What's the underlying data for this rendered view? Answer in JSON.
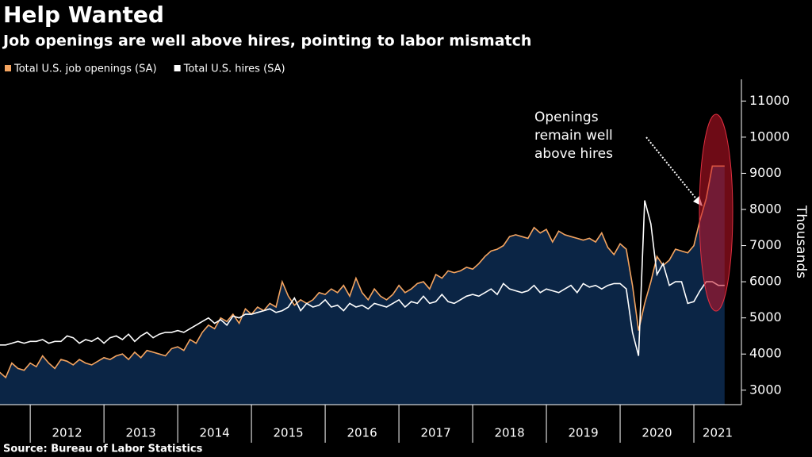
{
  "chart_data": {
    "type": "line",
    "title": "Help Wanted",
    "subtitle": "Job openings are well above hires, pointing to labor mismatch",
    "y_label": "Thousands",
    "source": "Source: Bureau of Labor Statistics",
    "annotation": [
      "Openings",
      "remain well",
      "above hires"
    ],
    "x": [
      2011.583,
      2011.667,
      2011.75,
      2011.833,
      2011.917,
      2012,
      2012.083,
      2012.167,
      2012.25,
      2012.333,
      2012.417,
      2012.5,
      2012.583,
      2012.667,
      2012.75,
      2012.833,
      2012.917,
      2013,
      2013.083,
      2013.167,
      2013.25,
      2013.333,
      2013.417,
      2013.5,
      2013.583,
      2013.667,
      2013.75,
      2013.833,
      2013.917,
      2014,
      2014.083,
      2014.167,
      2014.25,
      2014.333,
      2014.417,
      2014.5,
      2014.583,
      2014.667,
      2014.75,
      2014.833,
      2014.917,
      2015,
      2015.083,
      2015.167,
      2015.25,
      2015.333,
      2015.417,
      2015.5,
      2015.583,
      2015.667,
      2015.75,
      2015.833,
      2015.917,
      2016,
      2016.083,
      2016.167,
      2016.25,
      2016.333,
      2016.417,
      2016.5,
      2016.583,
      2016.667,
      2016.75,
      2016.833,
      2016.917,
      2017,
      2017.083,
      2017.167,
      2017.25,
      2017.333,
      2017.417,
      2017.5,
      2017.583,
      2017.667,
      2017.75,
      2017.833,
      2017.917,
      2018,
      2018.083,
      2018.167,
      2018.25,
      2018.333,
      2018.417,
      2018.5,
      2018.583,
      2018.667,
      2018.75,
      2018.833,
      2018.917,
      2019,
      2019.083,
      2019.167,
      2019.25,
      2019.333,
      2019.417,
      2019.5,
      2019.583,
      2019.667,
      2019.75,
      2019.833,
      2019.917,
      2020,
      2020.083,
      2020.167,
      2020.25,
      2020.333,
      2020.417,
      2020.5,
      2020.583,
      2020.667,
      2020.75,
      2020.833,
      2020.917,
      2021,
      2021.083,
      2021.167,
      2021.25,
      2021.333,
      2021.417
    ],
    "series": [
      {
        "name": "Total U.S. job openings (SA)",
        "color": "#f4a460",
        "area": "#0b2545",
        "values": [
          3500,
          3350,
          3750,
          3600,
          3550,
          3750,
          3650,
          3950,
          3750,
          3600,
          3850,
          3800,
          3700,
          3850,
          3750,
          3700,
          3800,
          3900,
          3850,
          3950,
          4000,
          3850,
          4050,
          3900,
          4100,
          4050,
          4000,
          3950,
          4150,
          4200,
          4100,
          4400,
          4300,
          4600,
          4800,
          4700,
          5000,
          4900,
          5100,
          4850,
          5250,
          5100,
          5300,
          5200,
          5400,
          5300,
          6000,
          5600,
          5350,
          5500,
          5400,
          5500,
          5700,
          5650,
          5800,
          5700,
          5900,
          5600,
          6100,
          5700,
          5500,
          5800,
          5600,
          5500,
          5650,
          5900,
          5700,
          5800,
          5950,
          6000,
          5800,
          6200,
          6100,
          6300,
          6250,
          6300,
          6400,
          6350,
          6500,
          6700,
          6850,
          6900,
          7000,
          7250,
          7300,
          7250,
          7200,
          7500,
          7350,
          7450,
          7100,
          7400,
          7300,
          7250,
          7200,
          7150,
          7200,
          7100,
          7350,
          6950,
          6750,
          7050,
          6900,
          5900,
          4650,
          5400,
          6000,
          6700,
          6450,
          6600,
          6900,
          6850,
          6800,
          7000,
          7700,
          8300,
          9200,
          9200,
          9200
        ]
      },
      {
        "name": "Total U.S. hires (SA)",
        "color": "#ffffff",
        "values": [
          4250,
          4250,
          4300,
          4350,
          4300,
          4350,
          4350,
          4400,
          4300,
          4350,
          4350,
          4500,
          4450,
          4300,
          4400,
          4350,
          4450,
          4300,
          4450,
          4500,
          4400,
          4550,
          4350,
          4500,
          4600,
          4450,
          4550,
          4600,
          4600,
          4650,
          4600,
          4700,
          4800,
          4900,
          5000,
          4850,
          4950,
          4800,
          5050,
          5000,
          5100,
          5100,
          5150,
          5200,
          5250,
          5150,
          5200,
          5300,
          5550,
          5200,
          5400,
          5300,
          5350,
          5500,
          5300,
          5350,
          5200,
          5400,
          5300,
          5350,
          5250,
          5400,
          5350,
          5300,
          5400,
          5500,
          5300,
          5450,
          5400,
          5600,
          5400,
          5450,
          5650,
          5450,
          5400,
          5500,
          5600,
          5650,
          5600,
          5700,
          5800,
          5650,
          5950,
          5800,
          5750,
          5700,
          5750,
          5900,
          5700,
          5800,
          5750,
          5700,
          5800,
          5900,
          5700,
          5950,
          5850,
          5900,
          5800,
          5900,
          5950,
          5950,
          5800,
          4600,
          3950,
          8250,
          7600,
          6200,
          6500,
          5900,
          6000,
          6000,
          5400,
          5450,
          5750,
          6000,
          6000,
          5900,
          5900
        ]
      }
    ],
    "xlim": [
      2011.59,
      2021.645
    ],
    "xticks": [
      2012,
      2013,
      2014,
      2015,
      2016,
      2017,
      2018,
      2019,
      2020,
      2021
    ],
    "ylim": [
      2600,
      11600
    ],
    "yticks": [
      3000,
      4000,
      5000,
      6000,
      7000,
      8000,
      9000,
      10000,
      11000
    ],
    "grid": false
  }
}
